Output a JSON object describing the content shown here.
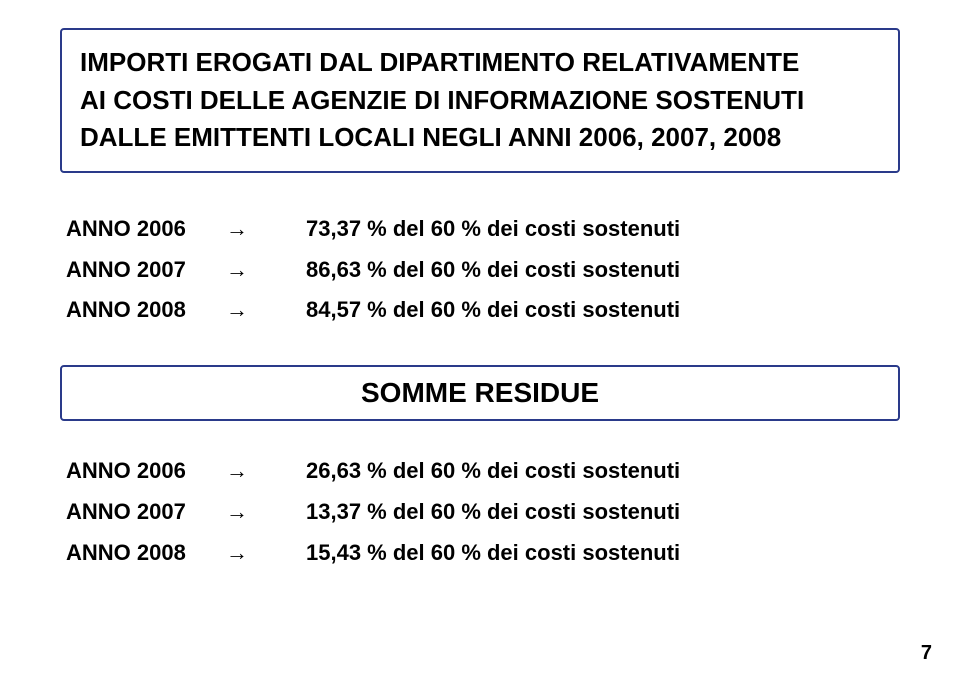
{
  "title": {
    "line1": "IMPORTI EROGATI DAL DIPARTIMENTO RELATIVAMENTE",
    "line2": "AI COSTI DELLE AGENZIE DI INFORMAZIONE SOSTENUTI",
    "line3": "DALLE EMITTENTI LOCALI NEGLI ANNI 2006, 2007, 2008"
  },
  "title_box": {
    "border_color": "#2a3a8a",
    "border_width": 2,
    "radius": 4
  },
  "erogati": {
    "rows": [
      {
        "year": "ANNO 2006",
        "arrow": "→",
        "value": "73,37 % del 60 % dei costi sostenuti"
      },
      {
        "year": "ANNO 2007",
        "arrow": "→",
        "value": "86,63 % del 60 % dei costi sostenuti"
      },
      {
        "year": "ANNO 2008",
        "arrow": "→",
        "value": "84,57 % del 60 % dei costi sostenuti"
      }
    ]
  },
  "residue_label": "SOMME RESIDUE",
  "residue_box": {
    "border_color": "#2a3a8a",
    "border_width": 2,
    "radius": 4
  },
  "residue": {
    "rows": [
      {
        "year": "ANNO 2006",
        "arrow": "→",
        "value": "26,63 % del 60 % dei costi sostenuti"
      },
      {
        "year": "ANNO 2007",
        "arrow": "→",
        "value": "13,37 % del 60 % dei costi sostenuti"
      },
      {
        "year": "ANNO 2008",
        "arrow": "→",
        "value": "15,43 % del 60 % dei costi sostenuti"
      }
    ]
  },
  "page_number": "7",
  "typography": {
    "title_fontsize": 26,
    "row_fontsize": 22,
    "residue_fontsize": 28,
    "font_weight": 900,
    "text_color": "#000000",
    "background": "#ffffff"
  }
}
